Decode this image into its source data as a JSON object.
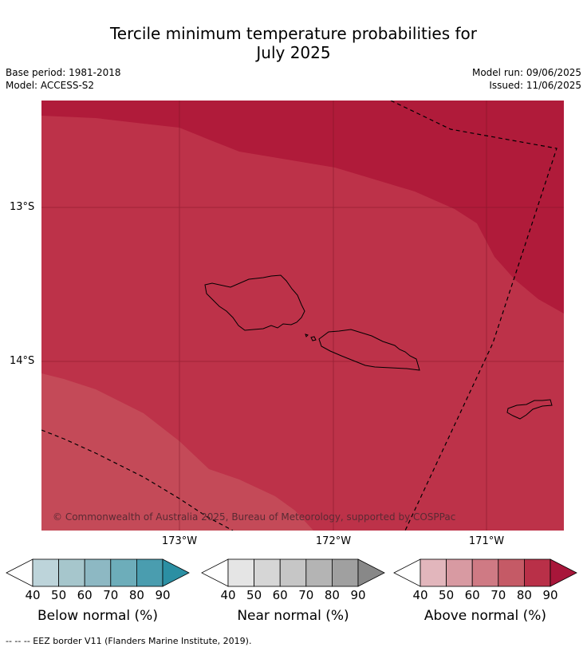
{
  "header": {
    "title_line1": "Tercile minimum temperature probabilities for",
    "title_line2": "July 2025",
    "base_period": "Base period: 1981-2018",
    "model": "Model: ACCESS-S2",
    "model_run": "Model run: 09/06/2025",
    "issued": "Issued: 11/06/2025"
  },
  "map": {
    "lat_labels": [
      "13°S",
      "14°S"
    ],
    "lon_labels": [
      "173°W",
      "172°W",
      "171°W"
    ],
    "copyright": "© Commonwealth of Australia 2025, Bureau of Meteorology, supported by COSPPac",
    "colors": {
      "very_high": "#b01b3a",
      "high": "#bd3249",
      "moderate": "#c44a58",
      "gridline": "#7a1525",
      "coast": "#000000",
      "eez": "#000000"
    }
  },
  "legends": [
    {
      "title": "Below normal (%)",
      "ticks": [
        "40",
        "50",
        "60",
        "70",
        "80",
        "90"
      ],
      "colors": [
        "#ffffff",
        "#bdd4da",
        "#a6c6cc",
        "#8db8c3",
        "#6dadba",
        "#4a9daf",
        "#2b8fa3"
      ]
    },
    {
      "title": "Near normal (%)",
      "ticks": [
        "40",
        "50",
        "60",
        "70",
        "80",
        "90"
      ],
      "colors": [
        "#ffffff",
        "#e5e5e5",
        "#d6d6d6",
        "#c6c6c6",
        "#b4b4b4",
        "#a0a0a0",
        "#888888"
      ]
    },
    {
      "title": "Above normal (%)",
      "ticks": [
        "40",
        "50",
        "60",
        "70",
        "80",
        "90"
      ],
      "colors": [
        "#ffffff",
        "#e2b6bc",
        "#d89aa2",
        "#cf7a84",
        "#c55a66",
        "#b93048",
        "#a8163a"
      ]
    }
  ],
  "footnote": "--  --  -- EEZ border V11 (Flanders Marine Institute, 2019)."
}
